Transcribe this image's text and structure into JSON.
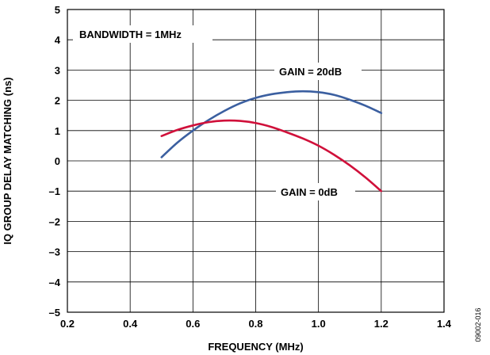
{
  "chart_data": {
    "type": "line",
    "xlabel": "FREQUENCY (MHz)",
    "ylabel": "IQ GROUP DELAY MATCHING (ns)",
    "xlim": [
      0.2,
      1.4
    ],
    "ylim": [
      -5,
      5
    ],
    "x_ticks": [
      0.2,
      0.4,
      0.6,
      0.8,
      1.0,
      1.2,
      1.4
    ],
    "x_tick_labels": [
      "0.2",
      "0.4",
      "0.6",
      "0.8",
      "1.0",
      "1.2",
      "1.4"
    ],
    "y_ticks": [
      -5,
      -4,
      -3,
      -2,
      -1,
      0,
      1,
      2,
      3,
      4,
      5
    ],
    "y_tick_labels": [
      "–5",
      "–4",
      "–3",
      "–2",
      "–1",
      "0",
      "1",
      "2",
      "3",
      "4",
      "5"
    ],
    "grid": true,
    "annotations": {
      "bandwidth": "BANDWIDTH = 1MHz",
      "gain20": "GAIN = 20dB",
      "gain0": "GAIN = 0dB"
    },
    "figure_code": "09002-016",
    "series": [
      {
        "color": "#3b5fa0",
        "x": [
          0.5,
          0.55,
          0.6,
          0.65,
          0.7,
          0.75,
          0.8,
          0.85,
          0.9,
          0.95,
          1.0,
          1.05,
          1.1,
          1.15,
          1.2
        ],
        "y": [
          0.12,
          0.6,
          1.0,
          1.35,
          1.65,
          1.9,
          2.08,
          2.2,
          2.27,
          2.3,
          2.27,
          2.18,
          2.02,
          1.82,
          1.58
        ]
      },
      {
        "color": "#d0103a",
        "x": [
          0.5,
          0.55,
          0.6,
          0.65,
          0.7,
          0.75,
          0.8,
          0.85,
          0.9,
          0.95,
          1.0,
          1.05,
          1.1,
          1.15,
          1.2
        ],
        "y": [
          0.82,
          1.02,
          1.17,
          1.28,
          1.33,
          1.32,
          1.25,
          1.12,
          0.94,
          0.74,
          0.5,
          0.2,
          -0.15,
          -0.55,
          -1.0
        ]
      }
    ]
  }
}
